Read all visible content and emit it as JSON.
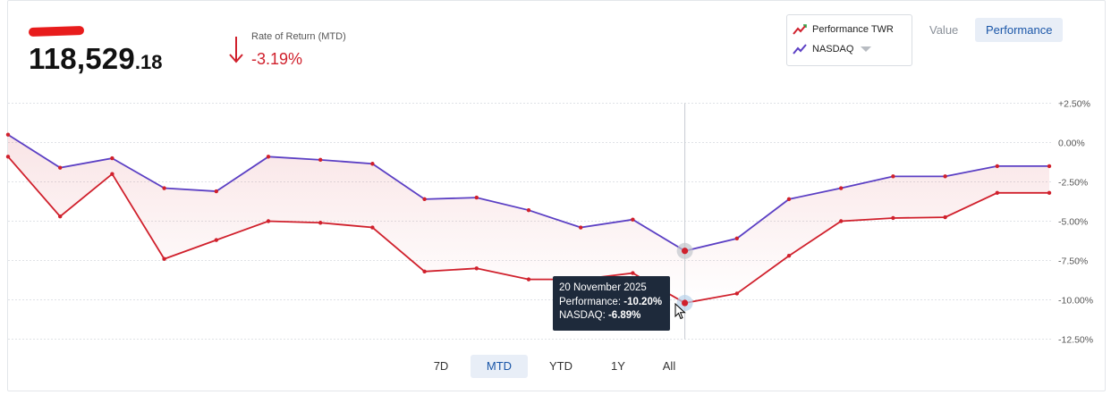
{
  "header": {
    "balance_major": "118,529",
    "balance_minor": ".18",
    "ror_label": "Rate of Return (MTD)",
    "ror_value": "-3.19%",
    "ror_direction": "down"
  },
  "legend": {
    "items": [
      {
        "label": "Performance TWR",
        "color": "#d0202c",
        "icon": "line-trend-icon"
      },
      {
        "label": "NASDAQ",
        "color": "#5b3fc4",
        "icon": "line-trend-icon"
      }
    ]
  },
  "view_toggle": {
    "value_label": "Value",
    "performance_label": "Performance",
    "selected": "Performance"
  },
  "periods": {
    "items": [
      "7D",
      "MTD",
      "YTD",
      "1Y",
      "All"
    ],
    "selected": "MTD"
  },
  "tooltip": {
    "date": "20 November 2025",
    "performance_label": "Performance:",
    "performance_value": "-10.20%",
    "nasdaq_label": "NASDAQ:",
    "nasdaq_value": "-6.89%"
  },
  "chart_data": {
    "type": "line",
    "ylim": [
      -12.5,
      2.5
    ],
    "yticks": [
      2.5,
      0,
      -2.5,
      -5,
      -7.5,
      -10,
      -12.5
    ],
    "ytick_labels": [
      "+2.50%",
      "0.00%",
      "-2.50%",
      "-5.00%",
      "-7.50%",
      "-10.00%",
      "-12.50%"
    ],
    "grid": true,
    "highlight_index": 13,
    "series": [
      {
        "name": "Performance TWR",
        "color": "#d0202c",
        "fill": true,
        "values": [
          -0.9,
          -4.7,
          -2.0,
          -7.4,
          -6.2,
          -5.0,
          -5.1,
          -5.4,
          -8.2,
          -8.0,
          -8.7,
          -8.7,
          -8.3,
          -10.2,
          -9.6,
          -7.2,
          -5.0,
          -4.8,
          -4.75,
          -3.2,
          -3.2
        ]
      },
      {
        "name": "NASDAQ",
        "color": "#5b3fc4",
        "fill": false,
        "values": [
          0.5,
          -1.6,
          -1.0,
          -2.9,
          -3.1,
          -0.9,
          -1.1,
          -1.35,
          -3.6,
          -3.5,
          -4.3,
          -5.4,
          -4.9,
          -6.89,
          -6.1,
          -3.6,
          -2.9,
          -2.15,
          -2.15,
          -1.5,
          -1.5
        ]
      }
    ]
  }
}
